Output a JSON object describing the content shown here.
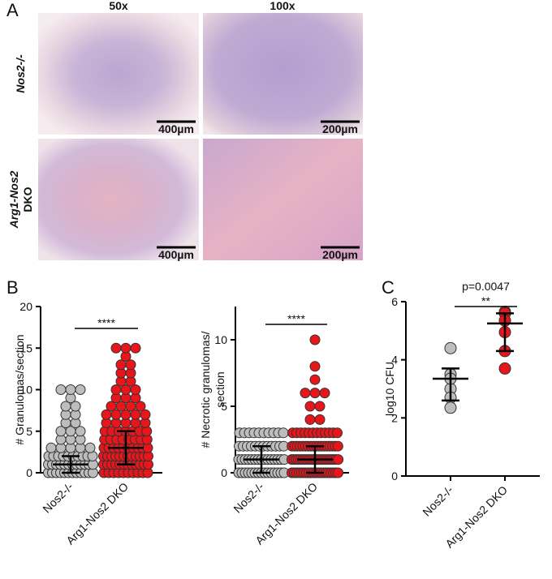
{
  "panel_labels": [
    "A",
    "B",
    "C"
  ],
  "images": {
    "columns": [
      "50x",
      "100x"
    ],
    "rows": [
      [
        "Nos2-/-"
      ],
      [
        "Arg1-Nos2",
        "DKO"
      ]
    ],
    "scale_bars": [
      [
        "400µm",
        "200µm"
      ],
      [
        "400µm",
        "200µm"
      ]
    ]
  },
  "chart_data": [
    {
      "type": "dot",
      "ylabel": [
        "# Granulomas/section"
      ],
      "categories": [
        "Nos2-/-",
        "Arg1-Nos2 DKO"
      ],
      "colors": [
        "#bdbdbd",
        "#e8151b"
      ],
      "ylim": [
        0,
        20
      ],
      "yticks": [
        0,
        5,
        10,
        15,
        20
      ],
      "values": [
        [
          0,
          0,
          0,
          0,
          0,
          0,
          0,
          0,
          0,
          0,
          0,
          0,
          1,
          1,
          1,
          1,
          1,
          1,
          1,
          1,
          1,
          1,
          1,
          1,
          2,
          2,
          2,
          2,
          2,
          2,
          2,
          2,
          2,
          2,
          3,
          3,
          3,
          3,
          3,
          4,
          4,
          4,
          5,
          5,
          5,
          6,
          6,
          7,
          7,
          8,
          8,
          9,
          10,
          10,
          10
        ],
        [
          0,
          0,
          0,
          0,
          0,
          0,
          0,
          0,
          0,
          0,
          1,
          1,
          1,
          1,
          1,
          1,
          1,
          1,
          1,
          1,
          1,
          1,
          2,
          2,
          2,
          2,
          2,
          2,
          2,
          2,
          2,
          2,
          2,
          2,
          3,
          3,
          3,
          3,
          3,
          3,
          3,
          3,
          3,
          3,
          4,
          4,
          4,
          4,
          4,
          4,
          4,
          4,
          5,
          5,
          5,
          5,
          5,
          5,
          5,
          6,
          6,
          6,
          6,
          6,
          7,
          7,
          7,
          7,
          7,
          8,
          8,
          8,
          8,
          9,
          9,
          9,
          10,
          10,
          10,
          11,
          11,
          12,
          12,
          13,
          13,
          14,
          15,
          15,
          15
        ]
      ],
      "summary": [
        {
          "center": 1,
          "low": 0,
          "high": 2
        },
        {
          "center": 3,
          "low": 1,
          "high": 5
        }
      ],
      "annotation": "****"
    },
    {
      "type": "dot",
      "ylabel": [
        "# Necrotic granulomas/",
        "section"
      ],
      "categories": [
        "Nos2-/-",
        "Arg1-Nos2 DKO"
      ],
      "colors": [
        "#bdbdbd",
        "#e8151b"
      ],
      "ylim": [
        0,
        12.5
      ],
      "yticks": [
        0,
        5,
        10
      ],
      "values": [
        [
          0,
          0,
          0,
          0,
          0,
          0,
          0,
          0,
          0,
          0,
          0,
          0,
          0,
          0,
          0,
          1,
          1,
          1,
          1,
          1,
          1,
          1,
          1,
          1,
          1,
          1,
          1,
          1,
          1,
          1,
          2,
          2,
          2,
          2,
          2,
          2,
          2,
          2,
          2,
          2,
          2,
          2,
          3,
          3,
          3,
          3,
          3,
          3,
          3,
          3,
          3,
          3
        ],
        [
          0,
          0,
          0,
          0,
          0,
          0,
          0,
          0,
          0,
          0,
          0,
          0,
          0,
          0,
          0,
          0,
          0,
          0,
          0,
          0,
          1,
          1,
          1,
          1,
          1,
          1,
          1,
          1,
          1,
          1,
          1,
          1,
          1,
          1,
          1,
          1,
          1,
          1,
          1,
          1,
          1,
          1,
          2,
          2,
          2,
          2,
          2,
          2,
          2,
          2,
          2,
          2,
          2,
          2,
          2,
          2,
          2,
          2,
          2,
          2,
          3,
          3,
          3,
          3,
          3,
          3,
          3,
          3,
          3,
          3,
          3,
          3,
          4,
          4,
          5,
          5,
          6,
          6,
          6,
          7,
          8,
          10
        ]
      ],
      "summary": [
        {
          "center": 1,
          "low": 0,
          "high": 2
        },
        {
          "center": 1,
          "low": 0,
          "high": 2
        }
      ],
      "annotation": "****"
    },
    {
      "type": "dot",
      "ylabel": [
        "log10 CFU"
      ],
      "categories": [
        "Nos2-/-",
        "Arg1-Nos2 DKO"
      ],
      "colors": [
        "#bdbdbd",
        "#e8151b"
      ],
      "ylim": [
        0,
        6
      ],
      "yticks": [
        0,
        2,
        4,
        6
      ],
      "values": [
        [
          4.4,
          3.5,
          3.35,
          3.0,
          2.7,
          2.35
        ],
        [
          5.65,
          5.6,
          5.35,
          4.95,
          4.3,
          3.7
        ]
      ],
      "summary": [
        {
          "center": 3.35,
          "low": 2.6,
          "high": 3.7
        },
        {
          "center": 5.25,
          "low": 4.3,
          "high": 5.6
        }
      ],
      "annotation": "**",
      "pvalue": "p=0.0047"
    }
  ]
}
